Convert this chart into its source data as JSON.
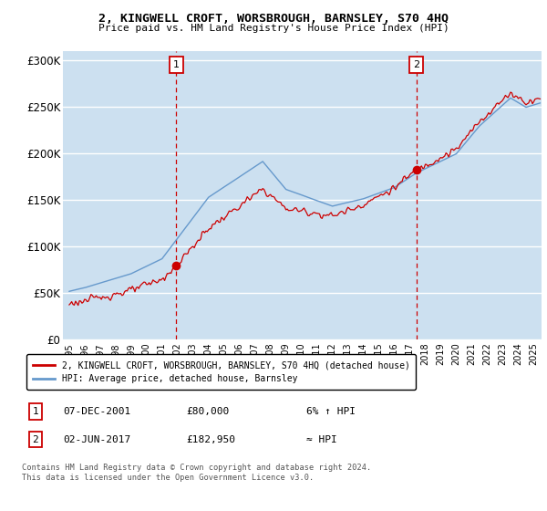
{
  "title": "2, KINGWELL CROFT, WORSBROUGH, BARNSLEY, S70 4HQ",
  "subtitle": "Price paid vs. HM Land Registry's House Price Index (HPI)",
  "ylabel_ticks": [
    "£0",
    "£50K",
    "£100K",
    "£150K",
    "£200K",
    "£250K",
    "£300K"
  ],
  "ytick_values": [
    0,
    50000,
    100000,
    150000,
    200000,
    250000,
    300000
  ],
  "ylim": [
    0,
    310000
  ],
  "background_color": "#cce0f0",
  "plot_bg": "#cce0f0",
  "grid_color": "#ffffff",
  "legend_entry1": "2, KINGWELL CROFT, WORSBROUGH, BARNSLEY, S70 4HQ (detached house)",
  "legend_entry2": "HPI: Average price, detached house, Barnsley",
  "annotation1_label": "1",
  "annotation1_date": "07-DEC-2001",
  "annotation1_price": "£80,000",
  "annotation1_hpi": "6% ↑ HPI",
  "annotation2_label": "2",
  "annotation2_date": "02-JUN-2017",
  "annotation2_price": "£182,950",
  "annotation2_hpi": "≈ HPI",
  "footnote": "Contains HM Land Registry data © Crown copyright and database right 2024.\nThis data is licensed under the Open Government Licence v3.0.",
  "line1_color": "#cc0000",
  "line2_color": "#6699cc",
  "vline_color": "#cc0000",
  "sale1_year": 2001.92,
  "sale1_value": 80000,
  "sale2_year": 2017.42,
  "sale2_value": 182950
}
